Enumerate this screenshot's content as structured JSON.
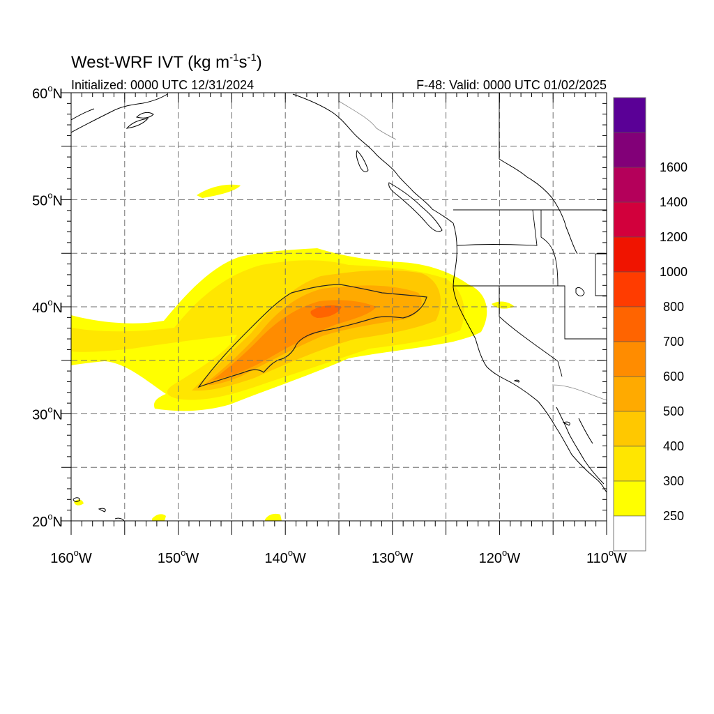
{
  "title": {
    "main": "West-WRF IVT (kg m",
    "sup1": "-1",
    "mid": "s",
    "sup2": "-1",
    "close": ")"
  },
  "initialized": "Initialized: 0000 UTC 12/31/2024",
  "valid": "F-48: Valid: 0000 UTC 01/02/2025",
  "map": {
    "lon_range": [
      -160,
      -110
    ],
    "lat_range": [
      20,
      60
    ],
    "lon_ticks": [
      {
        "value": -160,
        "num": "160",
        "suffix": "W"
      },
      {
        "value": -150,
        "num": "150",
        "suffix": "W"
      },
      {
        "value": -140,
        "num": "140",
        "suffix": "W"
      },
      {
        "value": -130,
        "num": "130",
        "suffix": "W"
      },
      {
        "value": -120,
        "num": "120",
        "suffix": "W"
      },
      {
        "value": -110,
        "num": "110",
        "suffix": "W"
      }
    ],
    "lat_ticks": [
      {
        "value": 60,
        "num": "60",
        "suffix": "N"
      },
      {
        "value": 50,
        "num": "50",
        "suffix": "N"
      },
      {
        "value": 40,
        "num": "40",
        "suffix": "N"
      },
      {
        "value": 30,
        "num": "30",
        "suffix": "N"
      },
      {
        "value": 20,
        "num": "20",
        "suffix": "N"
      }
    ],
    "grid_interval_deg": 5,
    "degree_symbol": "o"
  },
  "colorbar": {
    "levels": [
      {
        "label": "250",
        "color": "#ffff00"
      },
      {
        "label": "300",
        "color": "#ffe600"
      },
      {
        "label": "400",
        "color": "#ffc800"
      },
      {
        "label": "500",
        "color": "#ffaa00"
      },
      {
        "label": "600",
        "color": "#ff8c00"
      },
      {
        "label": "700",
        "color": "#ff6400"
      },
      {
        "label": "800",
        "color": "#ff3c00"
      },
      {
        "label": "1000",
        "color": "#f01400"
      },
      {
        "label": "1200",
        "color": "#d2003c"
      },
      {
        "label": "1400",
        "color": "#b4005a"
      },
      {
        "label": "1600",
        "color": "#820078"
      }
    ],
    "top_color": "#5a0096",
    "below_color": "#ffffff"
  }
}
